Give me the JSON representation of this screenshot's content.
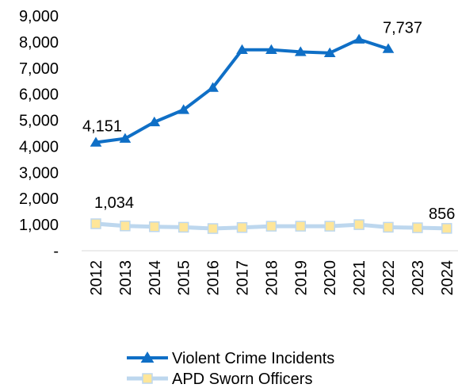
{
  "chart_data": {
    "type": "line",
    "title": "",
    "xlabel": "",
    "ylabel": "",
    "ylim": [
      0,
      9000
    ],
    "yticks": [
      0,
      1000,
      2000,
      3000,
      4000,
      5000,
      6000,
      7000,
      8000,
      9000
    ],
    "ytick_labels": [
      "-",
      "1,000",
      "2,000",
      "3,000",
      "4,000",
      "5,000",
      "6,000",
      "7,000",
      "8,000",
      "9,000"
    ],
    "categories": [
      "2012",
      "2013",
      "2014",
      "2015",
      "2016",
      "2017",
      "2018",
      "2019",
      "2020",
      "2021",
      "2022",
      "2023",
      "2024"
    ],
    "grid": false,
    "legend_position": "bottom",
    "series": [
      {
        "name": "Violent Crime Incidents",
        "color": "#0F6FC6",
        "marker": "triangle",
        "values": [
          4151,
          4300,
          4930,
          5400,
          6250,
          7700,
          7700,
          7620,
          7580,
          8100,
          7737,
          null,
          null
        ],
        "data_labels": {
          "0": "4,151",
          "10": "7,737"
        }
      },
      {
        "name": "APD Sworn Officers",
        "color": "#BDD7EE",
        "marker_fill": "#FFE699",
        "marker": "square",
        "values": [
          1034,
          950,
          920,
          900,
          850,
          890,
          940,
          940,
          940,
          1000,
          900,
          880,
          856
        ],
        "data_labels": {
          "0": "1,034",
          "12": "856"
        }
      }
    ]
  }
}
